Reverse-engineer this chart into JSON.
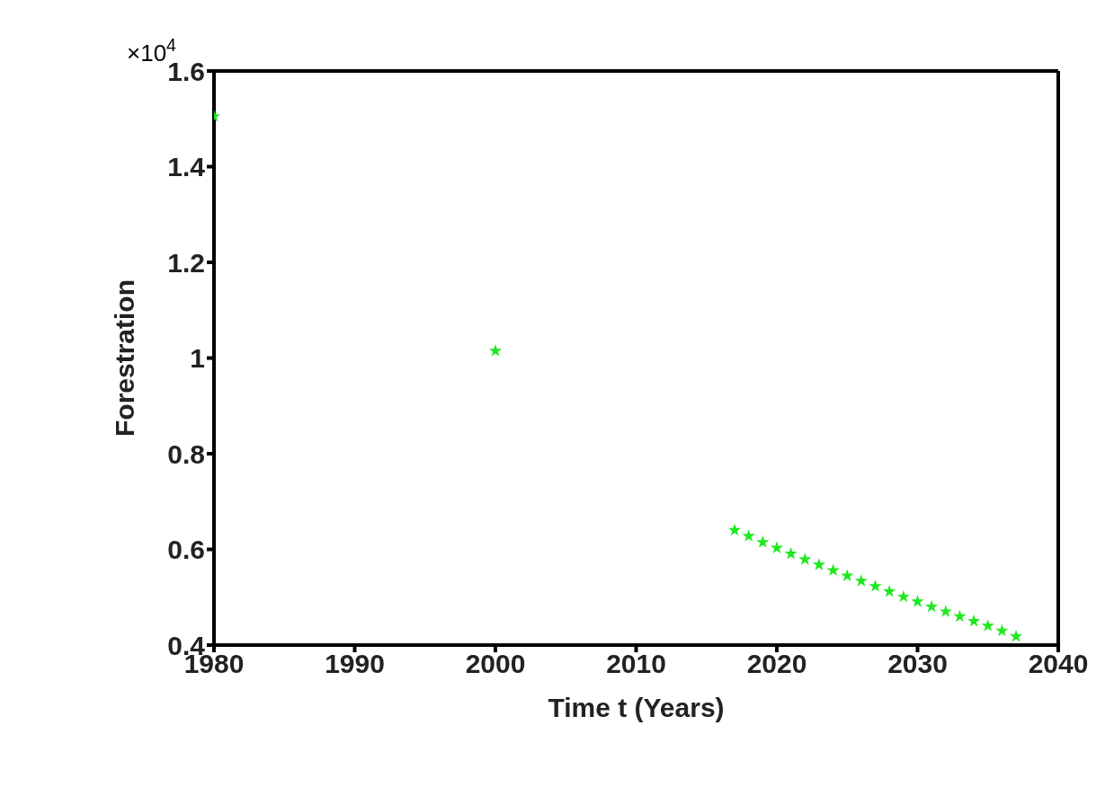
{
  "chart_data": {
    "type": "scatter",
    "xlabel": "Time t (Years)",
    "ylabel": "Forestration",
    "annotations": [
      "×10$^{4}$"
    ],
    "x": [
      1980,
      2000,
      2017,
      2018,
      2019,
      2020,
      2021,
      2022,
      2023,
      2024,
      2025,
      2026,
      2027,
      2028,
      2029,
      2030,
      2031,
      2032,
      2033,
      2034,
      2035,
      2036,
      2037
    ],
    "series": [
      {
        "color": "#1ee81e",
        "values": [
          1.505,
          1.015,
          0.64,
          0.628,
          0.615,
          0.603,
          0.591,
          0.579,
          0.568,
          0.556,
          0.545,
          0.534,
          0.523,
          0.512,
          0.501,
          0.491,
          0.48,
          0.47,
          0.46,
          0.45,
          0.44,
          0.43,
          0.418
        ]
      }
    ],
    "marker": "star",
    "xlim": [
      1980,
      2040
    ],
    "xticks": [
      1980,
      1990,
      2000,
      2010,
      2020,
      2030,
      2040
    ],
    "ylim": [
      0.4,
      1.6
    ],
    "yticks": [
      0.4,
      0.6,
      0.8,
      1,
      1.2,
      1.4,
      1.6
    ]
  }
}
